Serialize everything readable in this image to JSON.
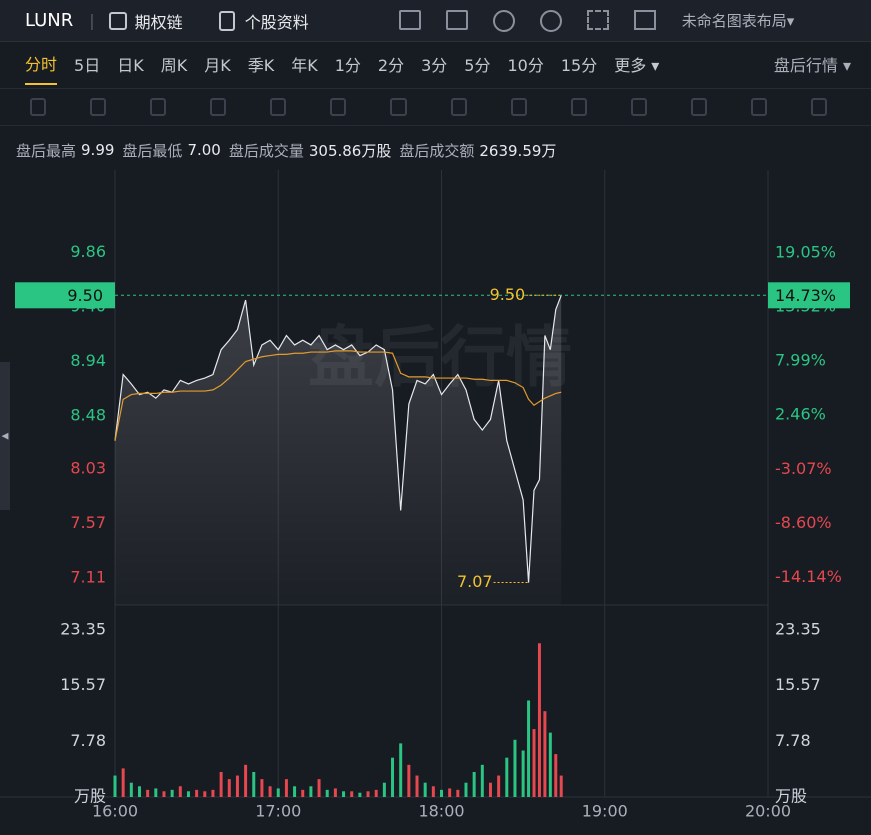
{
  "header": {
    "symbol": "LUNR",
    "options": "期权链",
    "profile": "个股资料",
    "layout": "未命名图表布局"
  },
  "tabs": [
    "分时",
    "5日",
    "日K",
    "周K",
    "月K",
    "季K",
    "年K",
    "1分",
    "2分",
    "3分",
    "5分",
    "10分",
    "15分",
    "更多"
  ],
  "session_selector": "盘后行情",
  "stats": [
    {
      "label": "盘后最高",
      "value": "9.99"
    },
    {
      "label": "盘后最低",
      "value": "7.00"
    },
    {
      "label": "盘后成交量",
      "value": "305.86万股"
    },
    {
      "label": "盘后成交额",
      "value": "2639.59万"
    }
  ],
  "watermark": "盘后行情",
  "chart_data": {
    "type": "line",
    "x": [
      "16:00",
      "16:03",
      "16:06",
      "16:09",
      "16:12",
      "16:15",
      "16:18",
      "16:21",
      "16:24",
      "16:27",
      "16:30",
      "16:33",
      "16:36",
      "16:39",
      "16:42",
      "16:45",
      "16:48",
      "16:51",
      "16:54",
      "16:57",
      "17:00",
      "17:03",
      "17:06",
      "17:09",
      "17:12",
      "17:15",
      "17:18",
      "17:21",
      "17:24",
      "17:27",
      "17:30",
      "17:33",
      "17:36",
      "17:39",
      "17:42",
      "17:45",
      "17:48",
      "17:51",
      "17:54",
      "17:57",
      "18:00",
      "18:03",
      "18:06",
      "18:09",
      "18:12",
      "18:15",
      "18:18",
      "18:21",
      "18:24",
      "18:27",
      "18:30",
      "18:32",
      "18:34",
      "18:36",
      "18:38",
      "18:40",
      "18:42",
      "18:44"
    ],
    "series": [
      {
        "color": "#e6e8ec",
        "values": [
          8.27,
          8.83,
          8.75,
          8.66,
          8.68,
          8.63,
          8.7,
          8.68,
          8.78,
          8.75,
          8.78,
          8.8,
          8.83,
          9.04,
          9.12,
          9.21,
          9.46,
          8.91,
          9.08,
          9.12,
          9.04,
          9.16,
          9.08,
          9.12,
          9.08,
          9.16,
          9.04,
          9.08,
          9.04,
          9.08,
          8.99,
          9.02,
          9.08,
          9.04,
          8.7,
          7.68,
          8.58,
          8.78,
          8.75,
          8.83,
          8.66,
          8.75,
          8.83,
          8.7,
          8.45,
          8.36,
          8.45,
          8.78,
          8.27,
          8.02,
          7.77,
          7.07,
          7.85,
          7.94,
          9.16,
          9.04,
          9.38,
          9.5
        ]
      },
      {
        "color": "#e39b2c",
        "values": [
          8.27,
          8.62,
          8.66,
          8.67,
          8.67,
          8.67,
          8.68,
          8.68,
          8.69,
          8.69,
          8.69,
          8.69,
          8.7,
          8.74,
          8.8,
          8.87,
          8.94,
          8.96,
          8.98,
          8.99,
          9.0,
          9.0,
          9.01,
          9.01,
          9.02,
          9.02,
          9.02,
          9.03,
          9.03,
          9.03,
          9.02,
          9.02,
          9.02,
          9.02,
          9.01,
          8.84,
          8.81,
          8.81,
          8.81,
          8.8,
          8.8,
          8.8,
          8.8,
          8.8,
          8.79,
          8.79,
          8.78,
          8.78,
          8.78,
          8.76,
          8.72,
          8.62,
          8.57,
          8.6,
          8.63,
          8.65,
          8.67,
          8.68
        ]
      }
    ],
    "xlim": [
      "16:00",
      "20:00"
    ],
    "xticks": [
      "16:00",
      "17:00",
      "18:00",
      "19:00",
      "20:00"
    ],
    "ylim": [
      6.88,
      10.56
    ],
    "yticks": [
      9.86,
      {
        "value": 9.4,
        "label": "9.40"
      },
      8.94,
      8.48,
      8.03,
      7.57,
      7.11
    ],
    "y2lim": [
      -16.93,
      27.51
    ],
    "y2ticks": [
      {
        "value": 19.05,
        "label": "19.05%"
      },
      {
        "value": 13.52,
        "label": "13.52%"
      },
      {
        "value": 7.99,
        "label": "7.99%"
      },
      {
        "value": 2.46,
        "label": "2.46%"
      },
      {
        "value": -3.07,
        "label": "-3.07%"
      },
      {
        "value": -8.6,
        "label": "-8.60%"
      },
      {
        "value": -14.14,
        "label": "-14.14%"
      }
    ],
    "up_color": "#e5484f",
    "down_color": "#2bc583",
    "last_price": {
      "value": 9.5,
      "label": "9.50"
    },
    "last_pct": {
      "value": 14.73,
      "label": "14.73%"
    },
    "annotations": [
      {
        "x": "18:44",
        "value": 9.5,
        "label": "9.50"
      },
      {
        "x": "18:32",
        "value": 7.07,
        "label": "7.07"
      }
    ],
    "volume": {
      "values": [
        3.0,
        4.0,
        2.0,
        1.5,
        1.0,
        1.2,
        0.8,
        1.0,
        1.5,
        0.8,
        1.0,
        0.8,
        1.0,
        3.5,
        2.5,
        3.0,
        4.5,
        3.5,
        2.5,
        1.5,
        1.2,
        2.5,
        1.5,
        1.0,
        1.5,
        2.5,
        1.0,
        1.2,
        0.8,
        0.8,
        0.6,
        0.8,
        1.0,
        2.0,
        5.5,
        7.5,
        4.5,
        3.0,
        2.0,
        1.5,
        1.0,
        1.2,
        1.0,
        2.0,
        3.5,
        4.5,
        2.0,
        3.0,
        5.5,
        8.0,
        6.5,
        13.5,
        9.5,
        21.5,
        12.0,
        9.0,
        6.0,
        3.0
      ],
      "ylim": [
        0,
        26.85
      ],
      "yticks": [
        7.78,
        15.57,
        23.35
      ],
      "unit": "万股"
    }
  }
}
